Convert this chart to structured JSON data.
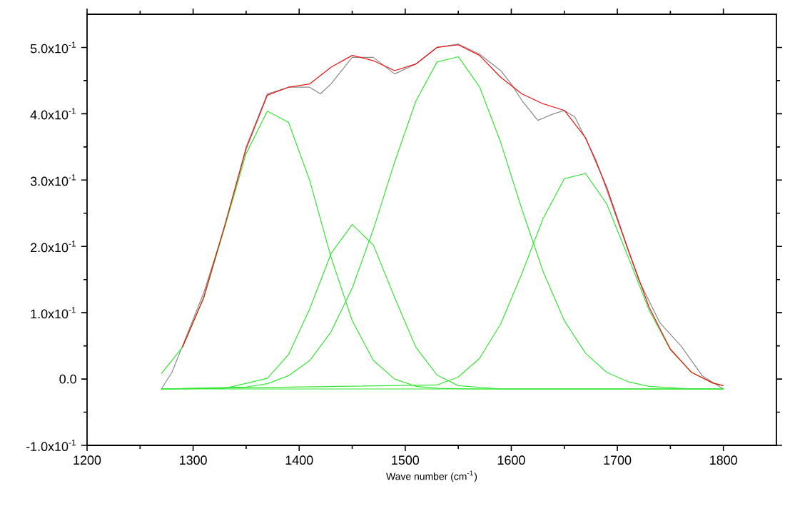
{
  "chart_data": {
    "type": "line",
    "xlabel": "Wave number (cm$^{-1}$)",
    "xlim": [
      1200,
      1850
    ],
    "ylim": [
      -0.1,
      0.55
    ],
    "xticks": [
      1200,
      1300,
      1400,
      1500,
      1600,
      1700,
      1800
    ],
    "yticks": [
      {
        "value": -0.1,
        "label": "-1.0x10$^{-1}$"
      },
      {
        "value": 0.0,
        "label": "0.0"
      },
      {
        "value": 0.1,
        "label": "1.0x10$^{-1}$"
      },
      {
        "value": 0.2,
        "label": "2.0x10$^{-1}$"
      },
      {
        "value": 0.3,
        "label": "3.0x10$^{-1}$"
      },
      {
        "value": 0.4,
        "label": "4.0x10$^{-1}$"
      },
      {
        "value": 0.5,
        "label": "5.0x10$^{-1}$"
      }
    ],
    "marker": "none",
    "line_style": "solid",
    "series": [
      {
        "color": "#888888",
        "x": [
          1270,
          1280,
          1290,
          1310,
          1330,
          1350,
          1370,
          1390,
          1410,
          1420,
          1430,
          1450,
          1470,
          1490,
          1510,
          1530,
          1550,
          1570,
          1590,
          1600,
          1610,
          1625,
          1640,
          1650,
          1660,
          1680,
          1700,
          1720,
          1740,
          1760,
          1780,
          1800
        ],
        "values": [
          -0.015,
          0.01,
          0.05,
          0.13,
          0.23,
          0.35,
          0.43,
          0.44,
          0.44,
          0.43,
          0.445,
          0.485,
          0.485,
          0.46,
          0.475,
          0.5,
          0.505,
          0.49,
          0.465,
          0.445,
          0.42,
          0.39,
          0.4,
          0.405,
          0.395,
          0.33,
          0.24,
          0.15,
          0.085,
          0.05,
          0.005,
          -0.015
        ]
      },
      {
        "color": "#33e633",
        "x": [
          1270,
          1800
        ],
        "values": [
          -0.015,
          -0.015
        ]
      },
      {
        "color": "#33e633",
        "x": [
          1270,
          1290,
          1310,
          1330,
          1350,
          1370,
          1390,
          1410,
          1430,
          1450,
          1470,
          1490,
          1510,
          1530,
          1570,
          1800
        ],
        "values": [
          0.008,
          0.048,
          0.122,
          0.23,
          0.34,
          0.404,
          0.387,
          0.299,
          0.184,
          0.088,
          0.028,
          0.0,
          -0.011,
          -0.014,
          -0.015,
          -0.015
        ]
      },
      {
        "color": "#33e633",
        "x": [
          1270,
          1330,
          1370,
          1390,
          1410,
          1430,
          1450,
          1470,
          1490,
          1510,
          1530,
          1550,
          1590,
          1800
        ],
        "values": [
          -0.015,
          -0.014,
          0.001,
          0.037,
          0.106,
          0.189,
          0.233,
          0.202,
          0.123,
          0.048,
          0.006,
          -0.01,
          -0.015,
          -0.015
        ]
      },
      {
        "color": "#33e633",
        "x": [
          1270,
          1350,
          1370,
          1390,
          1410,
          1430,
          1450,
          1470,
          1490,
          1510,
          1530,
          1550,
          1570,
          1590,
          1610,
          1630,
          1650,
          1670,
          1690,
          1710,
          1730,
          1770,
          1800
        ],
        "values": [
          -0.015,
          -0.012,
          -0.007,
          0.005,
          0.028,
          0.071,
          0.137,
          0.226,
          0.327,
          0.419,
          0.478,
          0.486,
          0.441,
          0.357,
          0.256,
          0.162,
          0.088,
          0.039,
          0.01,
          -0.004,
          -0.011,
          -0.015,
          -0.015
        ]
      },
      {
        "color": "#33e633",
        "x": [
          1270,
          1530,
          1550,
          1570,
          1590,
          1610,
          1630,
          1650,
          1670,
          1690,
          1710,
          1730,
          1750,
          1770,
          1790,
          1800
        ],
        "values": [
          -0.015,
          -0.009,
          0.003,
          0.031,
          0.083,
          0.159,
          0.242,
          0.302,
          0.31,
          0.264,
          0.185,
          0.104,
          0.044,
          0.01,
          -0.006,
          -0.01
        ]
      },
      {
        "color": "#ee1111",
        "x": [
          1290,
          1310,
          1330,
          1350,
          1370,
          1390,
          1410,
          1430,
          1450,
          1470,
          1490,
          1510,
          1530,
          1550,
          1570,
          1590,
          1610,
          1630,
          1650,
          1670,
          1690,
          1710,
          1730,
          1750,
          1770,
          1790,
          1800
        ],
        "values": [
          0.048,
          0.123,
          0.233,
          0.347,
          0.428,
          0.44,
          0.445,
          0.47,
          0.488,
          0.48,
          0.465,
          0.475,
          0.5,
          0.504,
          0.488,
          0.455,
          0.43,
          0.415,
          0.405,
          0.364,
          0.289,
          0.196,
          0.108,
          0.045,
          0.01,
          -0.006,
          -0.01
        ]
      }
    ]
  }
}
